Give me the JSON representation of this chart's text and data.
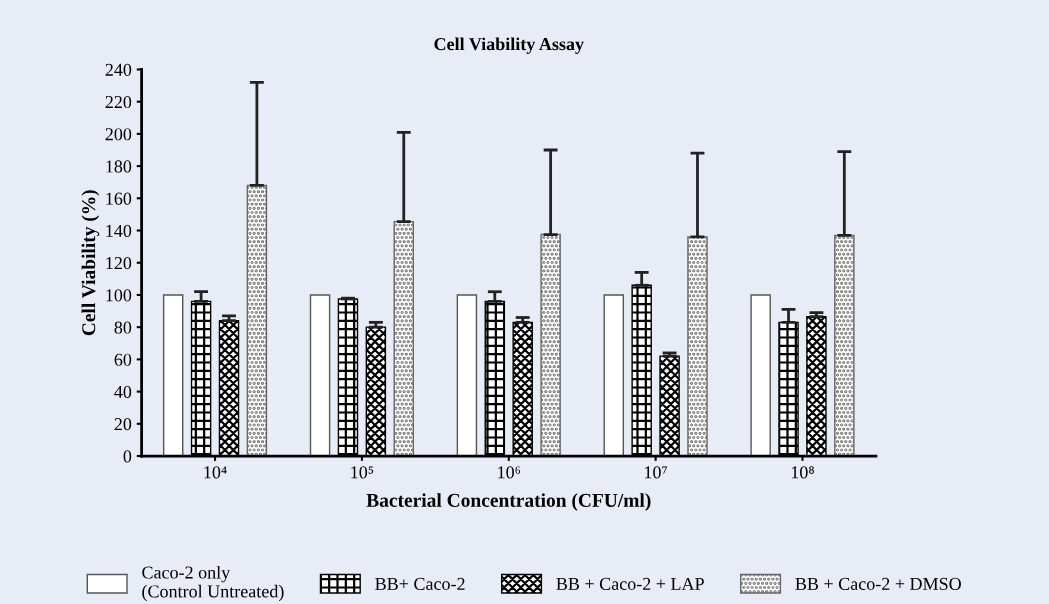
{
  "chart_data": {
    "type": "bar",
    "title": "Cell Viability Assay",
    "xlabel": "Bacterial Concentration (CFU/ml)",
    "ylabel": "Cell Viability (%)",
    "categories": [
      "10⁴",
      "10⁵",
      "10⁶",
      "10⁷",
      "10⁸"
    ],
    "series": [
      {
        "name": "Caco-2 only\n(Control Untreated)",
        "color": "#ffffff",
        "values": [
          100,
          100,
          100,
          100,
          100
        ]
      },
      {
        "name": "BB+ Caco-2",
        "color": "#000000",
        "values": [
          96,
          97.5,
          96,
          106,
          83
        ],
        "errors": [
          [
            96,
            102
          ],
          [
            97.5,
            98
          ],
          [
            96,
            102
          ],
          [
            106,
            114
          ],
          [
            83,
            91
          ]
        ]
      },
      {
        "name": "BB + Caco-2 + LAP",
        "color": "#000000",
        "values": [
          84,
          80,
          83,
          62,
          86.5
        ],
        "errors": [
          [
            84,
            87
          ],
          [
            80,
            83
          ],
          [
            83,
            86
          ],
          [
            62,
            64
          ],
          [
            86.5,
            89
          ]
        ]
      },
      {
        "name": "BB + Caco-2 + DMSO",
        "color": "#666666",
        "values": [
          168,
          145.5,
          137.5,
          136,
          137
        ],
        "errors": [
          [
            168,
            232
          ],
          [
            145.5,
            201
          ],
          [
            137.5,
            190
          ],
          [
            136,
            188
          ],
          [
            137,
            189
          ]
        ]
      }
    ],
    "ylim": [
      0,
      240
    ],
    "yticks": [
      0,
      20,
      40,
      60,
      80,
      100,
      120,
      140,
      160,
      180,
      200,
      220,
      240
    ],
    "grid": false,
    "legend": "bottom"
  }
}
